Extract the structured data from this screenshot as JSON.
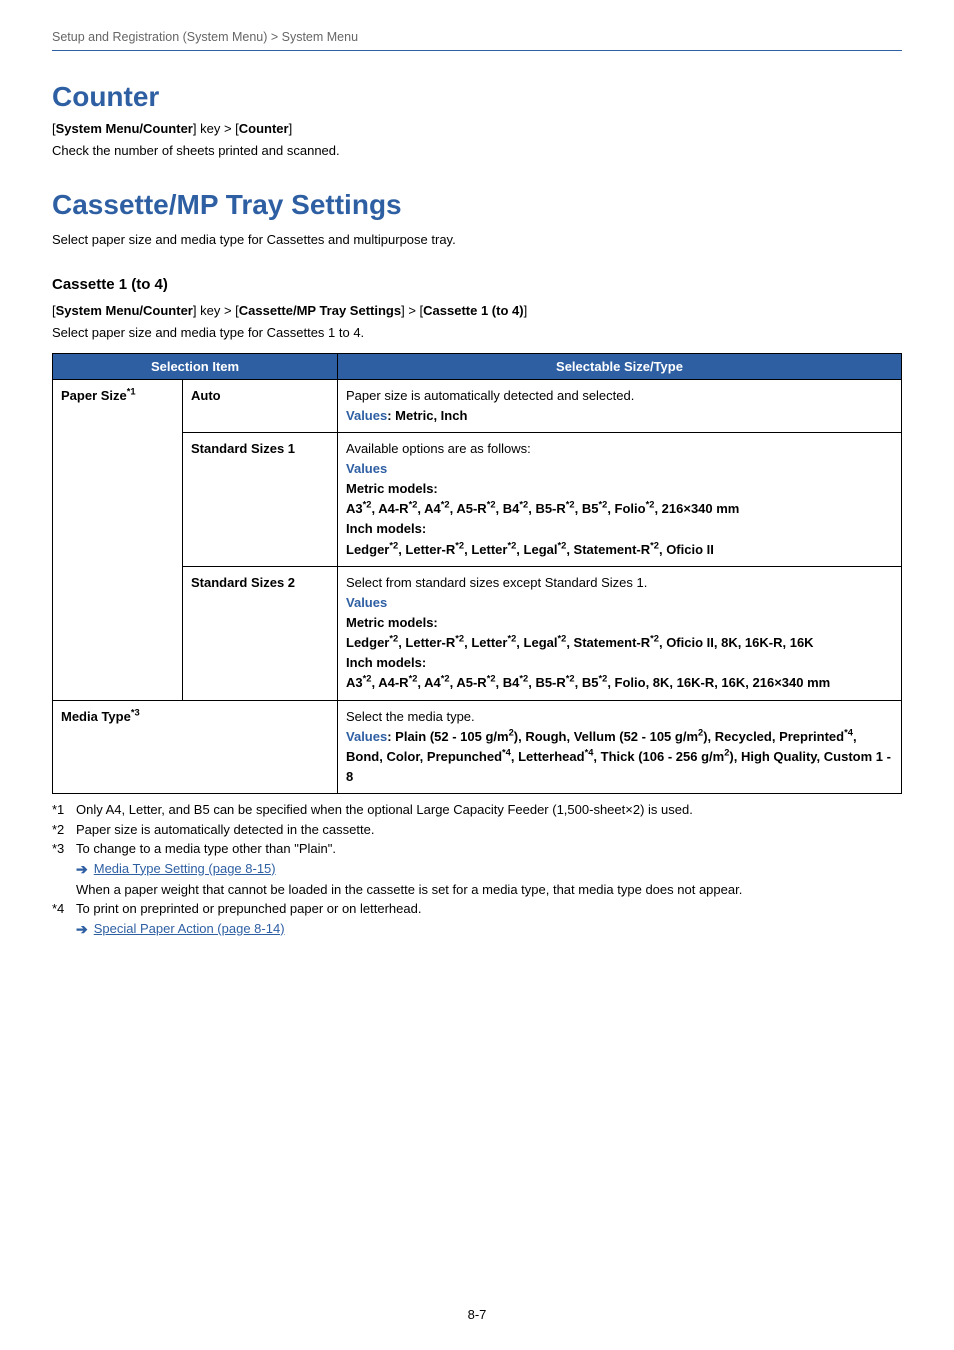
{
  "breadcrumb": "Setup and Registration (System Menu) > System Menu",
  "sections": {
    "counter": {
      "title": "Counter",
      "path_pre": "[",
      "path_b1": "System Menu/Counter",
      "path_mid": "] key > [",
      "path_b2": "Counter",
      "path_post": "]",
      "desc": "Check the number of sheets printed and scanned."
    },
    "cassette": {
      "title": "Cassette/MP Tray Settings",
      "intro": "Select paper size and media type for Cassettes and multipurpose tray.",
      "subheading": "Cassette 1 (to 4)",
      "path_pre": "[",
      "path_b1": "System Menu/Counter",
      "path_mid1": "] key > [",
      "path_b2": "Cassette/MP Tray Settings",
      "path_mid2": "] > [",
      "path_b3": "Cassette 1 (to 4)",
      "path_post": "]",
      "desc": "Select paper size and media type for Cassettes 1 to 4."
    }
  },
  "table": {
    "head_left": "Selection Item",
    "head_right": "Selectable Size/Type",
    "paper_size_label": "Paper Size",
    "paper_size_sup": "*1",
    "media_type_label": "Media Type",
    "media_type_sup": "*3",
    "rows": {
      "auto": {
        "label": "Auto",
        "l1": "Paper size is automatically detected and selected.",
        "values_label": "Values",
        "values_rest": ": Metric, Inch"
      },
      "std1": {
        "label": "Standard Sizes 1",
        "l1": "Available options are as follows:",
        "values_label": "Values",
        "metric_label": "Metric models:",
        "metric_sizes_prefix": "A3",
        "metric_2": "*2",
        "inch_label": "Inch models:"
      },
      "std2": {
        "label": "Standard Sizes 2",
        "l1": "Select from standard sizes except Standard Sizes 1.",
        "values_label": "Values",
        "metric_label": "Metric models:",
        "inch_label": "Inch models:"
      },
      "media": {
        "l1": "Select the media type.",
        "values_label": "Values"
      }
    }
  },
  "footnotes": {
    "f1_key": "*1",
    "f1": "Only A4, Letter, and B5 can be specified when the optional Large Capacity Feeder (1,500-sheet×2) is used.",
    "f2_key": "*2",
    "f2": "Paper size is automatically detected in the cassette.",
    "f3_key": "*3",
    "f3": "To change to a media type other than \"Plain\".",
    "f3_link": "Media Type Setting (page 8-15)",
    "f3_note": "When a paper weight that cannot be loaded in the cassette is set for a media type, that media type does not appear.",
    "f4_key": "*4",
    "f4": "To print on preprinted or prepunched paper or on letterhead.",
    "f4_link": "Special Paper Action (page 8-14)"
  },
  "page_number": "8-7",
  "colors": {
    "accent": "#2e5fa3",
    "text": "#000000",
    "muted": "#666666",
    "background": "#ffffff"
  }
}
